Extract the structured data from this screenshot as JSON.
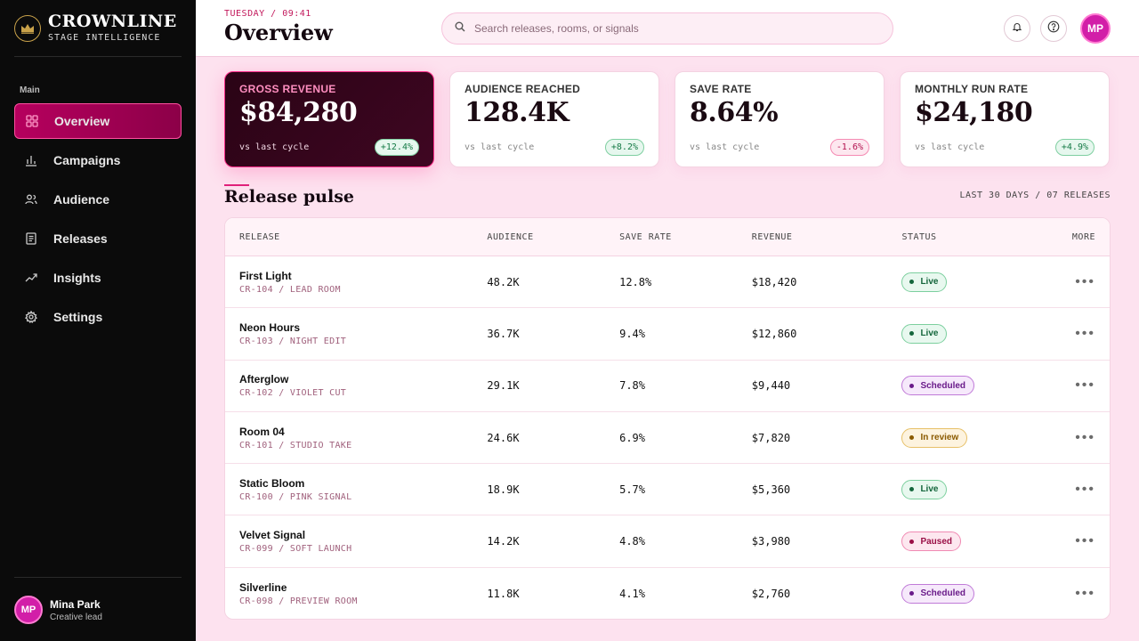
{
  "brand": {
    "name": "CROWNLINE",
    "subtitle": "STAGE INTELLIGENCE",
    "logo_icon": "crown-icon"
  },
  "sidebar": {
    "section": "Main",
    "items": [
      {
        "label": "Overview",
        "icon": "grid-icon",
        "active": true
      },
      {
        "label": "Campaigns",
        "icon": "bar-chart-icon"
      },
      {
        "label": "Audience",
        "icon": "users-icon"
      },
      {
        "label": "Releases",
        "icon": "document-icon"
      },
      {
        "label": "Insights",
        "icon": "trend-icon"
      },
      {
        "label": "Settings",
        "icon": "gear-icon"
      }
    ],
    "user": {
      "initials": "MP",
      "name": "Mina Park",
      "role": "Creative lead"
    }
  },
  "header": {
    "date": "TUESDAY / 09:41",
    "title": "Overview",
    "search_placeholder": "Search releases, rooms, or signals",
    "avatar_initials": "MP"
  },
  "stats": [
    {
      "label": "GROSS REVENUE",
      "value": "$84,280",
      "sub": "vs last cycle",
      "delta": "+12.4%",
      "trend": "up"
    },
    {
      "label": "AUDIENCE REACHED",
      "value": "128.4K",
      "sub": "vs last cycle",
      "delta": "+8.2%",
      "trend": "up"
    },
    {
      "label": "SAVE RATE",
      "value": "8.64%",
      "sub": "vs last cycle",
      "delta": "-1.6%",
      "trend": "down"
    },
    {
      "label": "MONTHLY RUN RATE",
      "value": "$24,180",
      "sub": "vs last cycle",
      "delta": "+4.9%",
      "trend": "up"
    }
  ],
  "section": {
    "title": "Release pulse",
    "meta": "LAST 30 DAYS / 07 RELEASES"
  },
  "table": {
    "headers": {
      "release": "RELEASE",
      "audience": "AUDIENCE",
      "save_rate": "SAVE RATE",
      "revenue": "REVENUE",
      "status": "STATUS",
      "more": "MORE"
    },
    "rows": [
      {
        "name": "First Light",
        "code": "CR-104 / LEAD ROOM",
        "audience": "48.2K",
        "save_rate": "12.8%",
        "revenue": "$18,420",
        "status": "Live"
      },
      {
        "name": "Neon Hours",
        "code": "CR-103 / NIGHT EDIT",
        "audience": "36.7K",
        "save_rate": "9.4%",
        "revenue": "$12,860",
        "status": "Live"
      },
      {
        "name": "Afterglow",
        "code": "CR-102 / VIOLET CUT",
        "audience": "29.1K",
        "save_rate": "7.8%",
        "revenue": "$9,440",
        "status": "Scheduled"
      },
      {
        "name": "Room 04",
        "code": "CR-101 / STUDIO TAKE",
        "audience": "24.6K",
        "save_rate": "6.9%",
        "revenue": "$7,820",
        "status": "In review"
      },
      {
        "name": "Static Bloom",
        "code": "CR-100 / PINK SIGNAL",
        "audience": "18.9K",
        "save_rate": "5.7%",
        "revenue": "$5,360",
        "status": "Live"
      },
      {
        "name": "Velvet Signal",
        "code": "CR-099 / SOFT LAUNCH",
        "audience": "14.2K",
        "save_rate": "4.8%",
        "revenue": "$3,980",
        "status": "Paused"
      },
      {
        "name": "Silverline",
        "code": "CR-098 / PREVIEW ROOM",
        "audience": "11.8K",
        "save_rate": "4.1%",
        "revenue": "$2,760",
        "status": "Scheduled"
      }
    ]
  },
  "colors": {
    "accent": "#e0207a",
    "sidebar_bg": "#0b0b0b",
    "page_bg": "#fde2ef"
  }
}
